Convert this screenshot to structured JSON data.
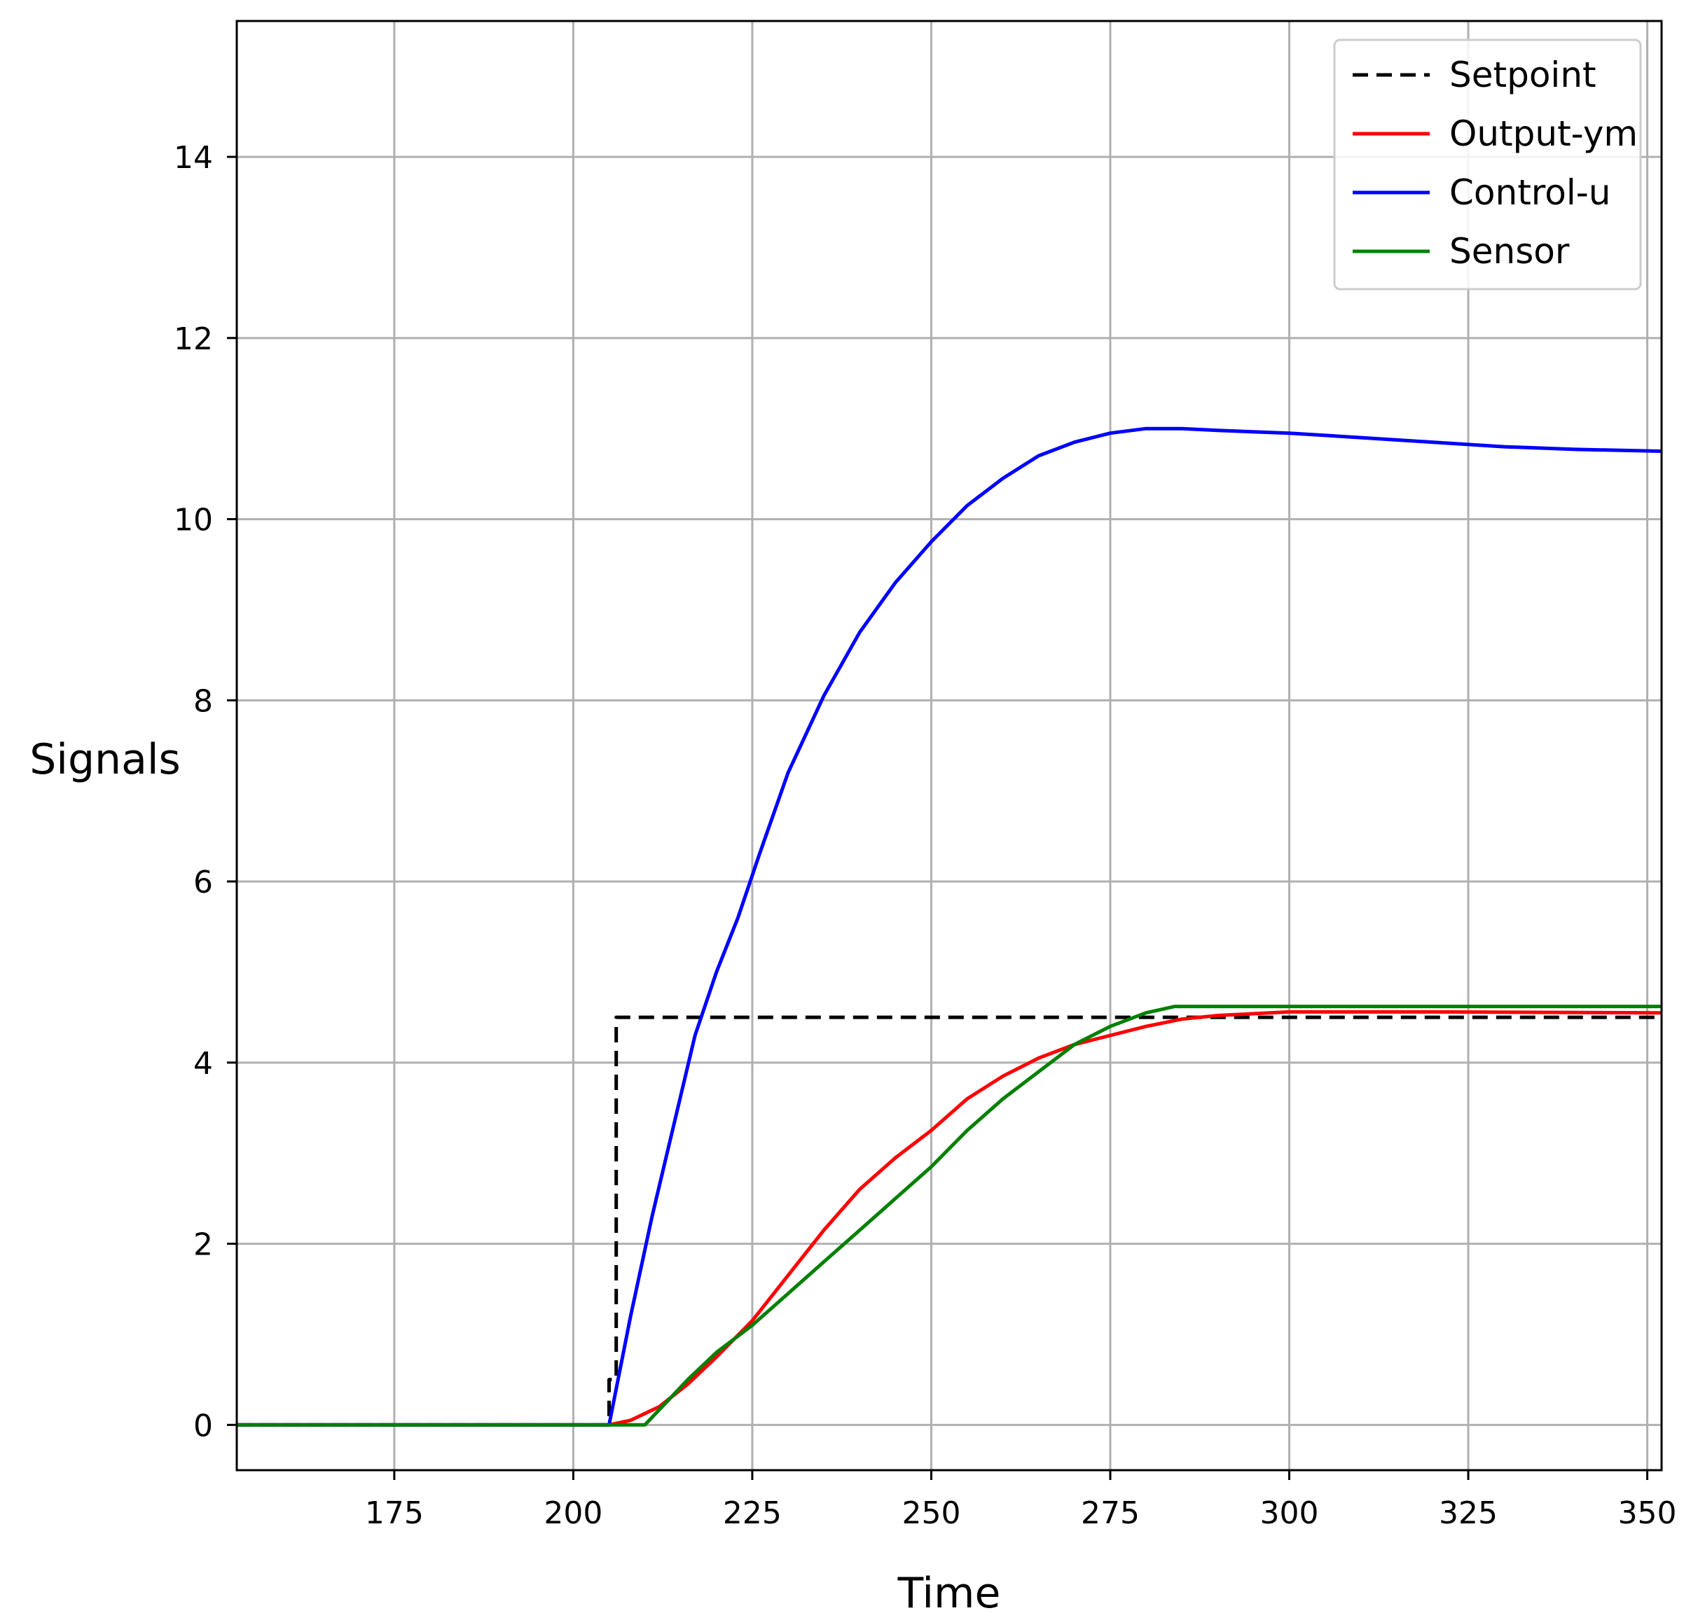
{
  "chart_data": {
    "type": "line",
    "xlabel": "Time",
    "ylabel": "Signals",
    "xlim": [
      153,
      352
    ],
    "ylim": [
      -0.5,
      15.5
    ],
    "x_ticks": [
      175,
      200,
      225,
      250,
      275,
      300,
      325,
      350
    ],
    "y_ticks": [
      0,
      2,
      4,
      6,
      8,
      10,
      12,
      14
    ],
    "x_tick_labels": [
      "175",
      "200",
      "225",
      "250",
      "275",
      "300",
      "325",
      "350"
    ],
    "y_tick_labels": [
      "0",
      "2",
      "4",
      "6",
      "8",
      "10",
      "12",
      "14"
    ],
    "grid": true,
    "legend_position": "top-right",
    "series": [
      {
        "name": "Setpoint",
        "color": "#000000",
        "style": "dashed",
        "x": [
          153,
          205,
          205,
          206,
          206,
          352
        ],
        "y": [
          0,
          0,
          0.5,
          0.5,
          4.5,
          4.5
        ]
      },
      {
        "name": "Output-ym",
        "color": "#ff0000",
        "style": "solid",
        "x": [
          153,
          205,
          208,
          212,
          216,
          220,
          225,
          230,
          235,
          240,
          245,
          250,
          255,
          260,
          265,
          270,
          275,
          280,
          285,
          290,
          300,
          320,
          352
        ],
        "y": [
          0,
          0,
          0.05,
          0.2,
          0.45,
          0.75,
          1.15,
          1.65,
          2.15,
          2.6,
          2.95,
          3.25,
          3.6,
          3.85,
          4.05,
          4.2,
          4.3,
          4.4,
          4.48,
          4.52,
          4.56,
          4.56,
          4.55
        ]
      },
      {
        "name": "Control-u",
        "color": "#0000ff",
        "style": "solid",
        "x": [
          153,
          205,
          208,
          211,
          214,
          217,
          220,
          223,
          226,
          230,
          235,
          240,
          245,
          250,
          255,
          260,
          265,
          270,
          275,
          280,
          285,
          290,
          300,
          310,
          320,
          330,
          340,
          352
        ],
        "y": [
          0,
          0,
          1.2,
          2.3,
          3.3,
          4.3,
          5.0,
          5.6,
          6.3,
          7.2,
          8.05,
          8.75,
          9.3,
          9.75,
          10.15,
          10.45,
          10.7,
          10.85,
          10.95,
          11.0,
          11.0,
          10.98,
          10.95,
          10.9,
          10.85,
          10.8,
          10.77,
          10.75
        ]
      },
      {
        "name": "Sensor",
        "color": "#008000",
        "style": "solid",
        "x": [
          153,
          205,
          210,
          213,
          216,
          220,
          225,
          230,
          235,
          240,
          245,
          250,
          255,
          260,
          265,
          270,
          275,
          280,
          284,
          290,
          300,
          320,
          352
        ],
        "y": [
          0,
          0,
          0,
          0.25,
          0.5,
          0.8,
          1.1,
          1.45,
          1.8,
          2.15,
          2.5,
          2.85,
          3.25,
          3.6,
          3.9,
          4.2,
          4.4,
          4.55,
          4.62,
          4.62,
          4.62,
          4.62,
          4.62
        ]
      }
    ]
  }
}
